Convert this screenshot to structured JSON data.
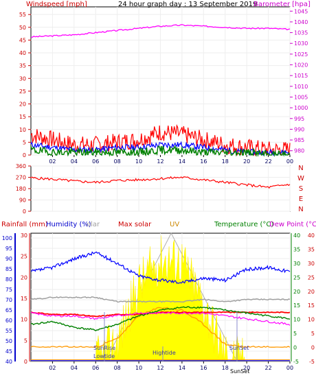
{
  "top": {
    "title": "24 hour graph day : 13 September 2019",
    "left_label": "Windspeed [mph]",
    "right_label": "Barometer [hpa]",
    "left_ticks": [
      "55",
      "50",
      "45",
      "40",
      "35",
      "30",
      "25",
      "20",
      "15",
      "10",
      "5",
      "0"
    ],
    "right_ticks": [
      "1045",
      "1040",
      "1035",
      "1030",
      "1025",
      "1020",
      "1015",
      "1010",
      "1005",
      "1000",
      "995",
      "990",
      "985",
      "980"
    ]
  },
  "x_ticks": [
    "02",
    "04",
    "06",
    "08",
    "10",
    "12",
    "14",
    "16",
    "18",
    "20",
    "22",
    "00"
  ],
  "direction": {
    "y_ticks": [
      "360",
      "270",
      "180",
      "90",
      "0"
    ],
    "compass": [
      "N",
      "W",
      "S",
      "E",
      "N"
    ]
  },
  "bottom": {
    "labels": {
      "rainfall": "Rainfall (mm)",
      "humidity": "Humidity (%)",
      "solar": "olar",
      "max_solar": "Max solar",
      "uv": "UV",
      "temperature": "Temperature (°C)",
      "dewpoint": "Dew Point (°C)"
    },
    "humidity_ticks": [
      "100",
      "95",
      "90",
      "85",
      "80",
      "75",
      "70",
      "65",
      "60",
      "55",
      "50",
      "45",
      "40"
    ],
    "rain_ticks": [
      "30",
      "25",
      "20",
      "15",
      "10",
      "5",
      "0"
    ],
    "temp_ticks": [
      "40",
      "35",
      "30",
      "25",
      "20",
      "15",
      "10",
      "5",
      "0",
      "-5"
    ],
    "dew_ticks": [
      "40",
      "35",
      "30",
      "25",
      "20",
      "15",
      "10",
      "5",
      "0",
      "-5"
    ],
    "annotations": {
      "sunrise": "SunRise",
      "lowtide": "Lowtide",
      "hightide": "Hightide",
      "sunset": "SunSet",
      "sunset2": "SunSet"
    }
  },
  "colors": {
    "wind_gust": "#ff0000",
    "wind_avg": "#0000ff",
    "wind_low": "#008000",
    "barometer": "#ff00ff",
    "direction": "#ff0000",
    "humidity": "#0000ff",
    "solar": "#a0a0a0",
    "max_solar": "#ff0000",
    "uv": "#ff9900",
    "temperature": "#008000",
    "dewpoint": "#ff00ff",
    "rain": "#0000ff"
  },
  "chart_data": [
    {
      "type": "line",
      "x": [
        0,
        2,
        4,
        6,
        8,
        10,
        12,
        14,
        16,
        18,
        20,
        22,
        24
      ],
      "series": [
        {
          "values": [
            1033,
            1033.5,
            1034,
            1035,
            1036,
            1037,
            1038,
            1038.5,
            1038,
            1037.5,
            1037,
            1037,
            1036.5
          ]
        },
        {
          "values": [
            8,
            6,
            4,
            4,
            5,
            6,
            9,
            8,
            6,
            4,
            3,
            2,
            2
          ]
        },
        {
          "values": [
            4,
            3,
            2,
            2,
            3,
            3,
            4,
            4,
            3,
            2,
            1,
            1,
            1
          ]
        },
        {
          "values": [
            2,
            1,
            1,
            1,
            1,
            1,
            2,
            2,
            1,
            1,
            1,
            0,
            0
          ]
        }
      ],
      "ylim": [
        0,
        58
      ],
      "y2lim": [
        978,
        1047
      ]
    },
    {
      "type": "line",
      "x": [
        0,
        2,
        4,
        6,
        8,
        10,
        12,
        14,
        16,
        18,
        20,
        22,
        24
      ],
      "series": [
        {
          "values": [
            265,
            255,
            240,
            230,
            245,
            250,
            260,
            270,
            250,
            230,
            210,
            190,
            215
          ]
        }
      ],
      "ylim": [
        0,
        360
      ]
    },
    {
      "type": "area",
      "x": [
        0,
        2,
        4,
        6,
        8,
        10,
        12,
        14,
        16,
        18,
        20,
        22,
        24
      ],
      "series": [
        {
          "values": [
            82,
            84,
            88,
            91,
            86,
            80,
            78,
            77,
            79,
            78,
            83,
            84,
            82
          ]
        },
        {
          "values": [
            69,
            70,
            70,
            70,
            68,
            68,
            68,
            68,
            69,
            68,
            69,
            69,
            69
          ]
        },
        {
          "values": [
            63,
            62,
            62,
            61,
            62,
            62,
            63,
            63,
            63,
            63,
            63,
            63,
            63
          ]
        },
        {
          "values": [
            8,
            9,
            7,
            6,
            8,
            11,
            13,
            14,
            14,
            13,
            12,
            11,
            10
          ]
        },
        {
          "values": [
            12,
            11,
            11,
            10,
            11,
            12,
            12,
            12,
            12,
            11,
            10,
            9,
            8
          ]
        },
        {
          "values": [
            0,
            0,
            0,
            0,
            15,
            60,
            80,
            78,
            45,
            5,
            0,
            0,
            0
          ]
        },
        {
          "values": [
            0,
            0,
            0,
            0,
            3,
            11,
            14,
            13,
            8,
            1,
            0,
            0,
            0
          ]
        },
        {
          "values": [
            0,
            0,
            0,
            0,
            0,
            0,
            0,
            0,
            0,
            0,
            0,
            0,
            0
          ]
        }
      ],
      "ylim": [
        40,
        100
      ],
      "y2lim": [
        -5,
        40
      ]
    }
  ]
}
